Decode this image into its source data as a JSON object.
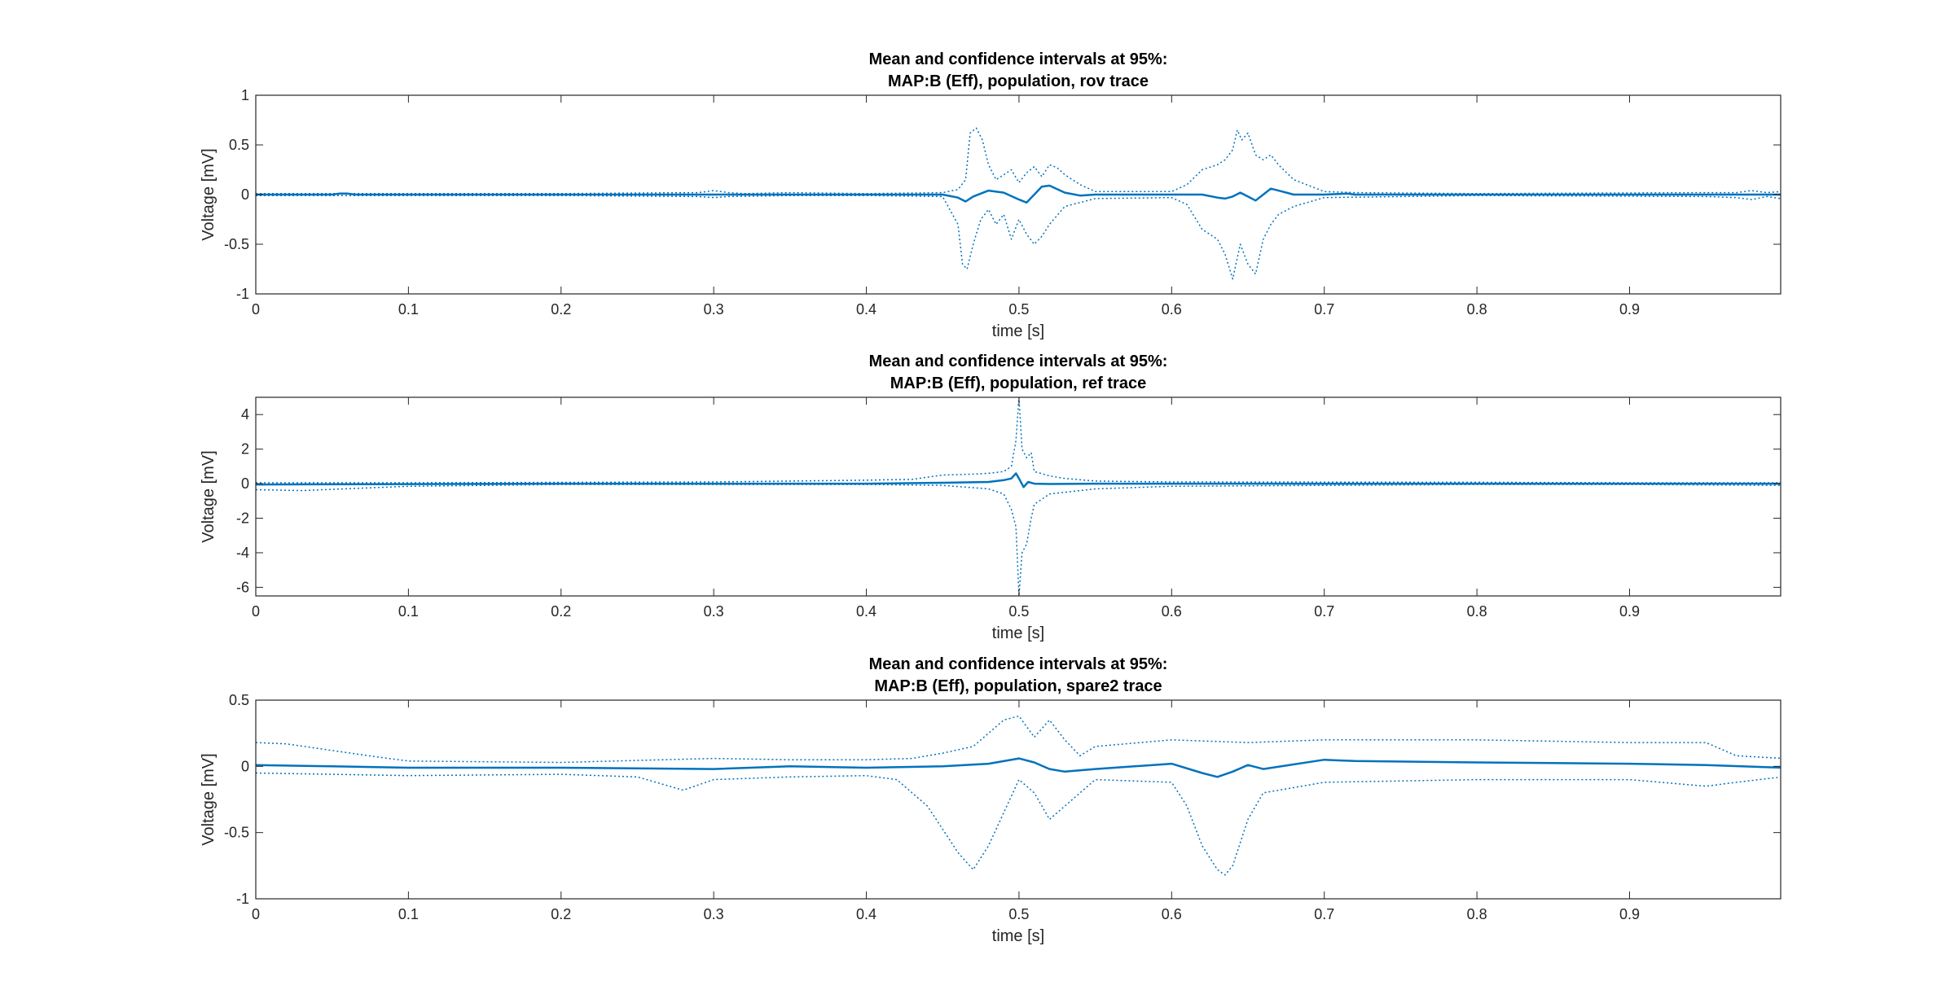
{
  "colors": {
    "line": "#0072BD",
    "axis": "#262626",
    "background": "#ffffff"
  },
  "chart_data": [
    {
      "type": "line",
      "title": [
        "Mean and confidence intervals at 95%:",
        "MAP:B (Eff), population, rov trace"
      ],
      "xlabel": "time [s]",
      "ylabel": "Voltage [mV]",
      "xlim": [
        0,
        0.999
      ],
      "ylim": [
        -1,
        1
      ],
      "xticks": [
        0,
        0.1,
        0.2,
        0.3,
        0.4,
        0.5,
        0.6,
        0.7,
        0.8,
        0.9
      ],
      "xtick_labels": [
        "0",
        "0.1",
        "0.2",
        "0.3",
        "0.4",
        "0.5",
        "0.6",
        "0.7",
        "0.8",
        "0.9"
      ],
      "yticks": [
        -1,
        -0.5,
        0,
        0.5,
        1
      ],
      "ytick_labels": [
        "-1",
        "-0.5",
        "0",
        "0.5",
        "1"
      ],
      "grid": false,
      "series": [
        {
          "role": "mean",
          "style": "solid",
          "x": [
            0,
            0.05,
            0.055,
            0.06,
            0.065,
            0.1,
            0.3,
            0.45,
            0.46,
            0.465,
            0.47,
            0.48,
            0.49,
            0.5,
            0.505,
            0.51,
            0.515,
            0.52,
            0.53,
            0.54,
            0.55,
            0.6,
            0.62,
            0.63,
            0.635,
            0.64,
            0.645,
            0.65,
            0.655,
            0.66,
            0.665,
            0.67,
            0.68,
            0.7,
            0.715,
            0.72,
            1.0
          ],
          "y": [
            0,
            0,
            0.01,
            0.01,
            0,
            0,
            0,
            0,
            -0.03,
            -0.07,
            -0.02,
            0.04,
            0.02,
            -0.05,
            -0.08,
            0,
            0.08,
            0.09,
            0.02,
            -0.01,
            0,
            0,
            0,
            -0.03,
            -0.04,
            -0.02,
            0.02,
            -0.02,
            -0.06,
            0,
            0.06,
            0.04,
            0,
            0,
            0.01,
            0,
            0
          ]
        },
        {
          "role": "upper",
          "style": "dotted",
          "x": [
            0,
            0.2,
            0.29,
            0.3,
            0.31,
            0.32,
            0.35,
            0.4,
            0.45,
            0.46,
            0.465,
            0.468,
            0.472,
            0.476,
            0.48,
            0.485,
            0.49,
            0.495,
            0.5,
            0.505,
            0.51,
            0.515,
            0.52,
            0.525,
            0.53,
            0.54,
            0.55,
            0.6,
            0.61,
            0.62,
            0.63,
            0.635,
            0.64,
            0.643,
            0.646,
            0.65,
            0.655,
            0.66,
            0.665,
            0.67,
            0.68,
            0.7,
            0.72,
            0.8,
            0.95,
            0.97,
            0.98,
            0.99,
            0.999
          ],
          "y": [
            0.01,
            0.01,
            0.02,
            0.04,
            0.02,
            0.01,
            0.02,
            0.01,
            0.02,
            0.05,
            0.15,
            0.62,
            0.67,
            0.55,
            0.3,
            0.15,
            0.2,
            0.25,
            0.12,
            0.22,
            0.28,
            0.18,
            0.3,
            0.27,
            0.2,
            0.1,
            0.03,
            0.03,
            0.1,
            0.25,
            0.3,
            0.35,
            0.45,
            0.65,
            0.55,
            0.62,
            0.4,
            0.35,
            0.4,
            0.3,
            0.15,
            0.03,
            0.02,
            0.01,
            0.02,
            0.02,
            0.04,
            0.02,
            0.03
          ]
        },
        {
          "role": "lower",
          "style": "dotted",
          "x": [
            0,
            0.2,
            0.29,
            0.3,
            0.31,
            0.35,
            0.4,
            0.45,
            0.46,
            0.463,
            0.466,
            0.47,
            0.475,
            0.48,
            0.485,
            0.49,
            0.495,
            0.5,
            0.505,
            0.51,
            0.515,
            0.52,
            0.53,
            0.55,
            0.6,
            0.61,
            0.62,
            0.63,
            0.635,
            0.64,
            0.645,
            0.65,
            0.655,
            0.66,
            0.665,
            0.67,
            0.68,
            0.7,
            0.8,
            0.95,
            0.97,
            0.98,
            0.99,
            0.999
          ],
          "y": [
            -0.01,
            -0.01,
            -0.02,
            -0.03,
            -0.02,
            -0.01,
            -0.01,
            -0.02,
            -0.3,
            -0.7,
            -0.75,
            -0.5,
            -0.25,
            -0.15,
            -0.3,
            -0.2,
            -0.45,
            -0.25,
            -0.4,
            -0.5,
            -0.42,
            -0.3,
            -0.12,
            -0.04,
            -0.03,
            -0.1,
            -0.35,
            -0.45,
            -0.6,
            -0.85,
            -0.5,
            -0.7,
            -0.8,
            -0.45,
            -0.3,
            -0.2,
            -0.12,
            -0.03,
            -0.01,
            -0.02,
            -0.03,
            -0.05,
            -0.02,
            -0.04
          ]
        }
      ]
    },
    {
      "type": "line",
      "title": [
        "Mean and confidence intervals at 95%:",
        "MAP:B (Eff), population, ref trace"
      ],
      "xlabel": "time [s]",
      "ylabel": "Voltage [mV]",
      "xlim": [
        0,
        0.999
      ],
      "ylim": [
        -6.5,
        5
      ],
      "xticks": [
        0,
        0.1,
        0.2,
        0.3,
        0.4,
        0.5,
        0.6,
        0.7,
        0.8,
        0.9
      ],
      "xtick_labels": [
        "0",
        "0.1",
        "0.2",
        "0.3",
        "0.4",
        "0.5",
        "0.6",
        "0.7",
        "0.8",
        "0.9"
      ],
      "yticks": [
        -6,
        -4,
        -2,
        0,
        2,
        4
      ],
      "ytick_labels": [
        "-6",
        "-4",
        "-2",
        "0",
        "2",
        "4"
      ],
      "grid": false,
      "series": [
        {
          "role": "mean",
          "style": "solid",
          "x": [
            0,
            0.2,
            0.4,
            0.45,
            0.48,
            0.49,
            0.495,
            0.498,
            0.5,
            0.503,
            0.506,
            0.51,
            0.52,
            0.55,
            0.7,
            1.0
          ],
          "y": [
            -0.05,
            0,
            0,
            0.05,
            0.1,
            0.2,
            0.3,
            0.6,
            0.3,
            -0.2,
            0.1,
            0,
            -0.02,
            0,
            0,
            0
          ]
        },
        {
          "role": "upper",
          "style": "dotted",
          "x": [
            0,
            0.05,
            0.1,
            0.3,
            0.4,
            0.43,
            0.45,
            0.47,
            0.48,
            0.49,
            0.495,
            0.498,
            0.5,
            0.502,
            0.505,
            0.508,
            0.51,
            0.52,
            0.53,
            0.55,
            0.6,
            0.8,
            0.9,
            1.0
          ],
          "y": [
            0.05,
            0.05,
            0.05,
            0.1,
            0.2,
            0.25,
            0.5,
            0.55,
            0.6,
            0.7,
            1.0,
            2.5,
            5.0,
            2.0,
            1.5,
            1.8,
            0.7,
            0.45,
            0.3,
            0.15,
            0.1,
            0.08,
            0.05,
            0.05
          ]
        },
        {
          "role": "lower",
          "style": "dotted",
          "x": [
            0,
            0.03,
            0.1,
            0.2,
            0.3,
            0.4,
            0.45,
            0.48,
            0.49,
            0.495,
            0.498,
            0.5,
            0.502,
            0.505,
            0.508,
            0.51,
            0.52,
            0.55,
            0.6,
            0.7,
            0.8,
            0.9,
            1.0
          ],
          "y": [
            -0.35,
            -0.4,
            -0.15,
            -0.05,
            -0.05,
            -0.05,
            -0.1,
            -0.3,
            -0.6,
            -1.5,
            -2.5,
            -6.5,
            -4.0,
            -3.5,
            -2.0,
            -1.2,
            -0.6,
            -0.3,
            -0.15,
            -0.1,
            -0.05,
            -0.05,
            -0.1
          ]
        }
      ]
    },
    {
      "type": "line",
      "title": [
        "Mean and confidence intervals at 95%:",
        "MAP:B (Eff), population, spare2 trace"
      ],
      "xlabel": "time [s]",
      "ylabel": "Voltage [mV]",
      "xlim": [
        0,
        0.999
      ],
      "ylim": [
        -1,
        0.5
      ],
      "xticks": [
        0,
        0.1,
        0.2,
        0.3,
        0.4,
        0.5,
        0.6,
        0.7,
        0.8,
        0.9
      ],
      "xtick_labels": [
        "0",
        "0.1",
        "0.2",
        "0.3",
        "0.4",
        "0.5",
        "0.6",
        "0.7",
        "0.8",
        "0.9"
      ],
      "yticks": [
        -1,
        -0.5,
        0,
        0.5
      ],
      "ytick_labels": [
        "-1",
        "-0.5",
        "0",
        "0.5"
      ],
      "grid": false,
      "series": [
        {
          "role": "mean",
          "style": "solid",
          "x": [
            0,
            0.05,
            0.1,
            0.2,
            0.3,
            0.35,
            0.4,
            0.45,
            0.48,
            0.5,
            0.51,
            0.52,
            0.53,
            0.55,
            0.6,
            0.62,
            0.63,
            0.64,
            0.65,
            0.66,
            0.7,
            0.72,
            0.8,
            0.9,
            0.95,
            1.0
          ],
          "y": [
            0.01,
            0,
            -0.01,
            -0.01,
            -0.02,
            0,
            -0.01,
            0,
            0.02,
            0.06,
            0.03,
            -0.02,
            -0.04,
            -0.02,
            0.02,
            -0.05,
            -0.08,
            -0.04,
            0.01,
            -0.02,
            0.05,
            0.04,
            0.03,
            0.02,
            0.01,
            -0.01
          ]
        },
        {
          "role": "upper",
          "style": "dotted",
          "x": [
            0,
            0.02,
            0.05,
            0.08,
            0.1,
            0.2,
            0.3,
            0.35,
            0.4,
            0.43,
            0.45,
            0.47,
            0.48,
            0.49,
            0.5,
            0.505,
            0.51,
            0.52,
            0.53,
            0.54,
            0.55,
            0.6,
            0.65,
            0.7,
            0.8,
            0.9,
            0.95,
            0.97,
            1.0
          ],
          "y": [
            0.18,
            0.17,
            0.12,
            0.07,
            0.04,
            0.03,
            0.06,
            0.05,
            0.05,
            0.06,
            0.1,
            0.15,
            0.25,
            0.35,
            0.38,
            0.3,
            0.22,
            0.35,
            0.2,
            0.08,
            0.15,
            0.2,
            0.18,
            0.2,
            0.2,
            0.18,
            0.18,
            0.08,
            0.06
          ]
        },
        {
          "role": "lower",
          "style": "dotted",
          "x": [
            0,
            0.05,
            0.1,
            0.2,
            0.25,
            0.28,
            0.3,
            0.35,
            0.4,
            0.42,
            0.44,
            0.46,
            0.47,
            0.48,
            0.49,
            0.5,
            0.51,
            0.52,
            0.53,
            0.55,
            0.6,
            0.61,
            0.62,
            0.63,
            0.635,
            0.64,
            0.65,
            0.66,
            0.7,
            0.8,
            0.9,
            0.95,
            0.97,
            1.0
          ],
          "y": [
            -0.05,
            -0.06,
            -0.07,
            -0.06,
            -0.08,
            -0.18,
            -0.1,
            -0.08,
            -0.07,
            -0.1,
            -0.3,
            -0.65,
            -0.78,
            -0.6,
            -0.35,
            -0.1,
            -0.2,
            -0.4,
            -0.3,
            -0.1,
            -0.12,
            -0.3,
            -0.6,
            -0.78,
            -0.82,
            -0.75,
            -0.4,
            -0.2,
            -0.12,
            -0.1,
            -0.1,
            -0.15,
            -0.12,
            -0.08
          ]
        }
      ]
    }
  ]
}
